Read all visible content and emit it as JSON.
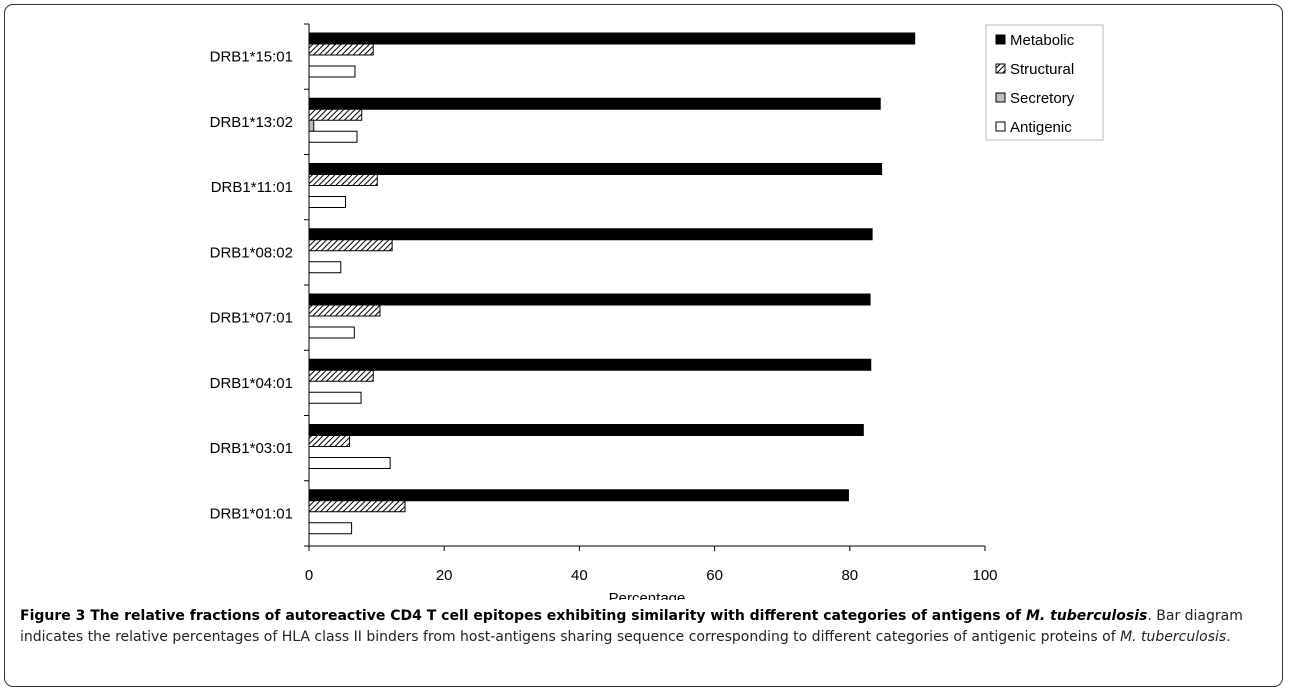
{
  "chart_data": {
    "type": "bar",
    "orientation": "horizontal",
    "categories": [
      "DRB1*01:01",
      "DRB1*03:01",
      "DRB1*04:01",
      "DRB1*07:01",
      "DRB1*08:02",
      "DRB1*11:01",
      "DRB1*13:02",
      "DRB1*15:01"
    ],
    "series": [
      {
        "name": "Metabolic",
        "values": [
          79.8,
          82.0,
          83.1,
          83.0,
          83.3,
          84.7,
          84.5,
          89.6
        ],
        "fill": "#000000"
      },
      {
        "name": "Structural",
        "values": [
          14.2,
          6.0,
          9.5,
          10.5,
          12.3,
          10.1,
          7.8,
          9.5
        ],
        "fill": "hatch"
      },
      {
        "name": "Secretory",
        "values": [
          0,
          0,
          0,
          0,
          0,
          0,
          0.7,
          0
        ],
        "fill": "#bfbfbf"
      },
      {
        "name": "Antigenic",
        "values": [
          6.3,
          12.0,
          7.7,
          6.7,
          4.7,
          5.4,
          7.1,
          6.8
        ],
        "fill": "#ffffff"
      }
    ],
    "xlabel": "Percentage",
    "ylabel": "",
    "xlim": [
      0,
      100
    ],
    "xticks": [
      0,
      20,
      40,
      60,
      80,
      100
    ],
    "grid": false,
    "legend": "top-right"
  },
  "caption": {
    "title": "Figure 3 The relative fractions of autoreactive CD4 T cell epitopes exhibiting similarity with different categories of antigens of ",
    "title_species_1": "M.",
    "title_species_2": "tuberculosis",
    "body_1": ". Bar diagram indicates the relative percentages of HLA class II binders from host-antigens sharing sequence corresponding to different categories of antigenic proteins of ",
    "body_species": "M. tuberculosis",
    "body_end": "."
  }
}
